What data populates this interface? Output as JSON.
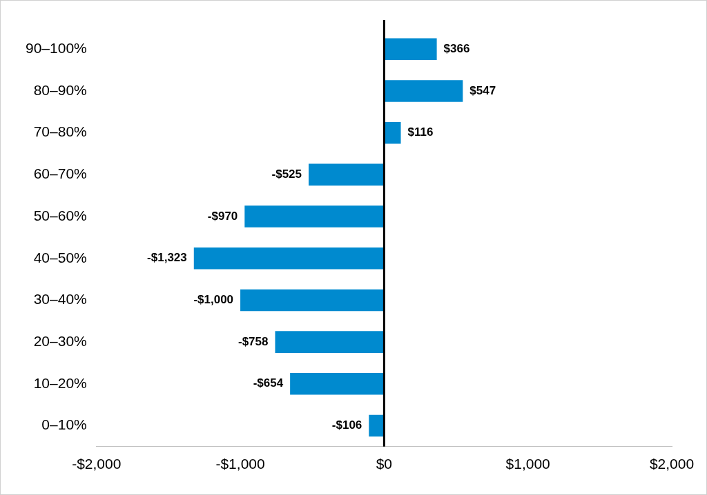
{
  "chart_data": {
    "type": "bar",
    "orientation": "horizontal",
    "categories": [
      "90–100%",
      "80–90%",
      "70–80%",
      "60–70%",
      "50–60%",
      "40–50%",
      "30–40%",
      "20–30%",
      "10–20%",
      "0–10%"
    ],
    "values": [
      366,
      547,
      116,
      -525,
      -970,
      -1323,
      -1000,
      -758,
      -654,
      -106
    ],
    "value_labels": [
      "$366",
      "$547",
      "$116",
      "-$525",
      "-$970",
      "-$1,323",
      "-$1,000",
      "-$758",
      "-$654",
      "-$106"
    ],
    "color": "#008ACF",
    "xlim": [
      -2000,
      2000
    ],
    "xticks": [
      {
        "value": -2000,
        "label": "-$2,000"
      },
      {
        "value": -1000,
        "label": "-$1,000"
      },
      {
        "value": 0,
        "label": "$0"
      },
      {
        "value": 1000,
        "label": "$1,000"
      },
      {
        "value": 2000,
        "label": "$2,000"
      }
    ],
    "grid": false,
    "data_labels": true
  }
}
